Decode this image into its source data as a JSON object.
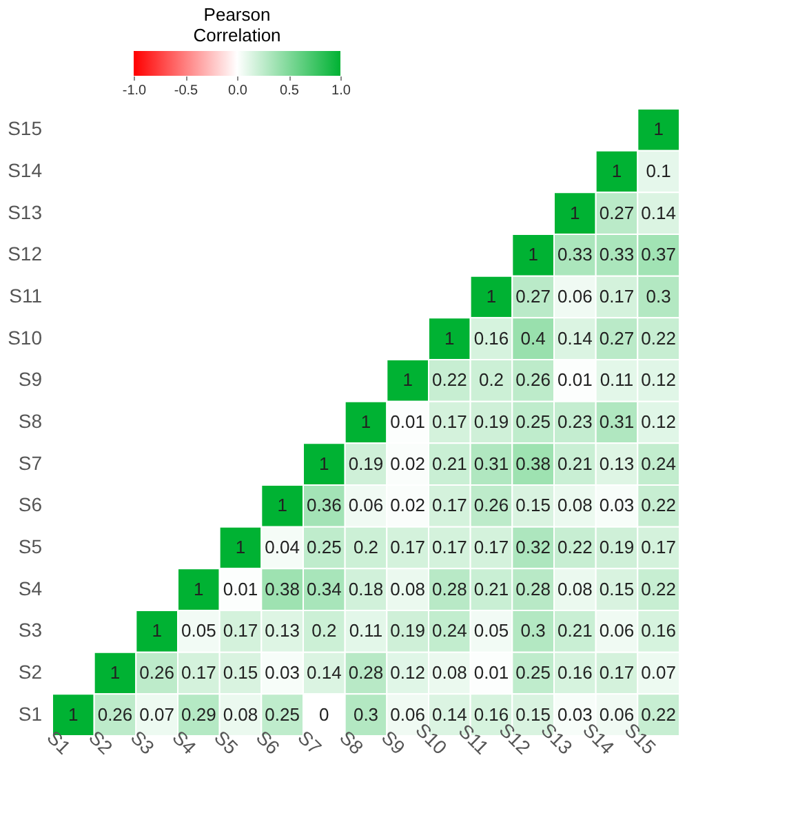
{
  "chart_data": {
    "type": "heatmap",
    "categories": [
      "S1",
      "S2",
      "S3",
      "S4",
      "S5",
      "S6",
      "S7",
      "S8",
      "S9",
      "S10",
      "S11",
      "S12",
      "S13",
      "S14",
      "S15"
    ],
    "y_categories": [
      "S15",
      "S14",
      "S13",
      "S12",
      "S11",
      "S10",
      "S9",
      "S8",
      "S7",
      "S6",
      "S5",
      "S4",
      "S3",
      "S2",
      "S1"
    ],
    "cells": [
      [
        null,
        null,
        null,
        null,
        null,
        null,
        null,
        null,
        null,
        null,
        null,
        null,
        null,
        null,
        1
      ],
      [
        null,
        null,
        null,
        null,
        null,
        null,
        null,
        null,
        null,
        null,
        null,
        null,
        null,
        1,
        0.1
      ],
      [
        null,
        null,
        null,
        null,
        null,
        null,
        null,
        null,
        null,
        null,
        null,
        null,
        1,
        0.27,
        0.14
      ],
      [
        null,
        null,
        null,
        null,
        null,
        null,
        null,
        null,
        null,
        null,
        null,
        1,
        0.33,
        0.33,
        0.37
      ],
      [
        null,
        null,
        null,
        null,
        null,
        null,
        null,
        null,
        null,
        null,
        1,
        0.27,
        0.06,
        0.17,
        0.3
      ],
      [
        null,
        null,
        null,
        null,
        null,
        null,
        null,
        null,
        null,
        1,
        0.16,
        0.4,
        0.14,
        0.27,
        0.22
      ],
      [
        null,
        null,
        null,
        null,
        null,
        null,
        null,
        null,
        1,
        0.22,
        0.2,
        0.26,
        0.01,
        0.11,
        0.12
      ],
      [
        null,
        null,
        null,
        null,
        null,
        null,
        null,
        1,
        0.01,
        0.17,
        0.19,
        0.25,
        0.23,
        0.31,
        0.12
      ],
      [
        null,
        null,
        null,
        null,
        null,
        null,
        1,
        0.19,
        0.02,
        0.21,
        0.31,
        0.38,
        0.21,
        0.13,
        0.24
      ],
      [
        null,
        null,
        null,
        null,
        null,
        1,
        0.36,
        0.06,
        0.02,
        0.17,
        0.26,
        0.15,
        0.08,
        0.03,
        0.22
      ],
      [
        null,
        null,
        null,
        null,
        1,
        0.04,
        0.25,
        0.2,
        0.17,
        0.17,
        0.17,
        0.32,
        0.22,
        0.19,
        0.17
      ],
      [
        null,
        null,
        null,
        1,
        0.01,
        0.38,
        0.34,
        0.18,
        0.08,
        0.28,
        0.21,
        0.28,
        0.08,
        0.15,
        0.22
      ],
      [
        null,
        null,
        1,
        0.05,
        0.17,
        0.13,
        0.2,
        0.11,
        0.19,
        0.24,
        0.05,
        0.3,
        0.21,
        0.06,
        0.16
      ],
      [
        null,
        1,
        0.26,
        0.17,
        0.15,
        0.03,
        0.14,
        0.28,
        0.12,
        0.08,
        0.01,
        0.25,
        0.16,
        0.17,
        0.07
      ],
      [
        1,
        0.26,
        0.07,
        0.29,
        0.08,
        0.25,
        0,
        0.3,
        0.06,
        0.14,
        0.16,
        0.15,
        0.03,
        0.06,
        0.22
      ]
    ],
    "legend_title": "Pearson Correlation",
    "colors": [
      "#ff0000",
      "#ffffff",
      "#00b233"
    ],
    "clim": [
      -1,
      1
    ],
    "cticks": [
      {
        "value": -1,
        "label": "-1.0"
      },
      {
        "value": -0.5,
        "label": "-0.5"
      },
      {
        "value": 0,
        "label": "0.0"
      },
      {
        "value": 0.5,
        "label": "0.5"
      },
      {
        "value": 1,
        "label": "1.0"
      }
    ],
    "data_labels": true
  }
}
